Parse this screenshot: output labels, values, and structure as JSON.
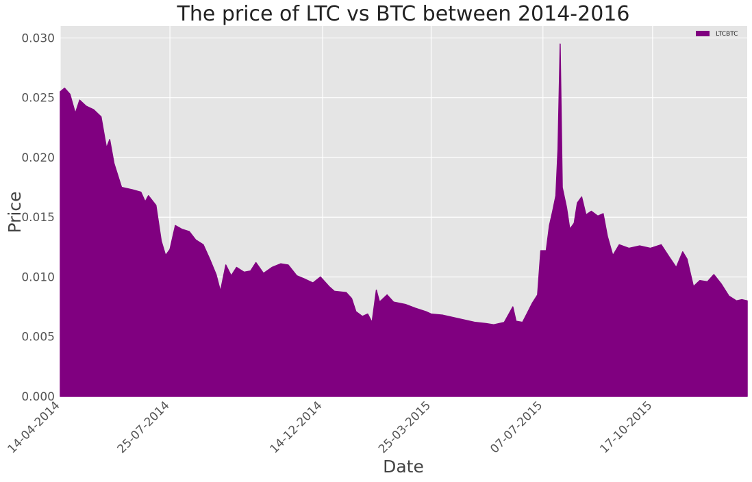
{
  "chart_data": {
    "type": "area",
    "title": "The price of LTC vs BTC between 2014-2016",
    "xlabel": "Date",
    "ylabel": "Price",
    "x_range": [
      "2014-04-14",
      "2016-01-13"
    ],
    "xticks": [
      {
        "date": "2014-04-14",
        "label": "14-04-2014"
      },
      {
        "date": "2014-07-25",
        "label": "25-07-2014"
      },
      {
        "date": "2014-12-14",
        "label": "14-12-2014"
      },
      {
        "date": "2015-03-25",
        "label": "25-03-2015"
      },
      {
        "date": "2015-07-07",
        "label": "07-07-2015"
      },
      {
        "date": "2015-10-17",
        "label": "17-10-2015"
      }
    ],
    "ylim": [
      0,
      0.031
    ],
    "yticks": [
      {
        "value": 0.0,
        "label": "0.000"
      },
      {
        "value": 0.005,
        "label": "0.005"
      },
      {
        "value": 0.01,
        "label": "0.010"
      },
      {
        "value": 0.015,
        "label": "0.015"
      },
      {
        "value": 0.02,
        "label": "0.020"
      },
      {
        "value": 0.025,
        "label": "0.025"
      },
      {
        "value": 0.03,
        "label": "0.030"
      }
    ],
    "grid": true,
    "legend_position": "top-right",
    "series": [
      {
        "name": "LTCBTC",
        "color": "#800080",
        "points": [
          [
            "2014-04-14",
            0.0255
          ],
          [
            "2014-04-18",
            0.0258
          ],
          [
            "2014-04-23",
            0.0253
          ],
          [
            "2014-04-28",
            0.0237
          ],
          [
            "2014-05-02",
            0.0248
          ],
          [
            "2014-05-08",
            0.0243
          ],
          [
            "2014-05-15",
            0.024
          ],
          [
            "2014-05-22",
            0.0234
          ],
          [
            "2014-05-27",
            0.0208
          ],
          [
            "2014-05-30",
            0.0215
          ],
          [
            "2014-06-03",
            0.0195
          ],
          [
            "2014-06-10",
            0.0175
          ],
          [
            "2014-06-20",
            0.0173
          ],
          [
            "2014-06-28",
            0.0171
          ],
          [
            "2014-07-02",
            0.0163
          ],
          [
            "2014-07-05",
            0.0168
          ],
          [
            "2014-07-12",
            0.016
          ],
          [
            "2014-07-17",
            0.013
          ],
          [
            "2014-07-21",
            0.0118
          ],
          [
            "2014-07-25",
            0.0123
          ],
          [
            "2014-07-30",
            0.0143
          ],
          [
            "2014-08-05",
            0.014
          ],
          [
            "2014-08-12",
            0.0138
          ],
          [
            "2014-08-18",
            0.0131
          ],
          [
            "2014-08-25",
            0.0127
          ],
          [
            "2014-08-31",
            0.0115
          ],
          [
            "2014-09-06",
            0.0102
          ],
          [
            "2014-09-10",
            0.0088
          ],
          [
            "2014-09-15",
            0.011
          ],
          [
            "2014-09-20",
            0.0101
          ],
          [
            "2014-09-25",
            0.0108
          ],
          [
            "2014-10-02",
            0.0104
          ],
          [
            "2014-10-08",
            0.0105
          ],
          [
            "2014-10-13",
            0.0112
          ],
          [
            "2014-10-20",
            0.0103
          ],
          [
            "2014-10-28",
            0.0108
          ],
          [
            "2014-11-05",
            0.0111
          ],
          [
            "2014-11-12",
            0.011
          ],
          [
            "2014-11-20",
            0.0101
          ],
          [
            "2014-11-28",
            0.0098
          ],
          [
            "2014-12-05",
            0.0095
          ],
          [
            "2014-12-12",
            0.01
          ],
          [
            "2014-12-20",
            0.0092
          ],
          [
            "2014-12-25",
            0.0088
          ],
          [
            "2015-01-05",
            0.0087
          ],
          [
            "2015-01-10",
            0.0082
          ],
          [
            "2015-01-14",
            0.0071
          ],
          [
            "2015-01-20",
            0.0067
          ],
          [
            "2015-01-25",
            0.0069
          ],
          [
            "2015-01-29",
            0.0062
          ],
          [
            "2015-02-02",
            0.0089
          ],
          [
            "2015-02-05",
            0.0079
          ],
          [
            "2015-02-12",
            0.0085
          ],
          [
            "2015-02-18",
            0.0079
          ],
          [
            "2015-03-01",
            0.0077
          ],
          [
            "2015-03-10",
            0.0074
          ],
          [
            "2015-03-20",
            0.0071
          ],
          [
            "2015-03-25",
            0.0069
          ],
          [
            "2015-04-05",
            0.0068
          ],
          [
            "2015-04-15",
            0.0066
          ],
          [
            "2015-04-25",
            0.0064
          ],
          [
            "2015-05-05",
            0.0062
          ],
          [
            "2015-05-15",
            0.0061
          ],
          [
            "2015-05-22",
            0.006
          ],
          [
            "2015-06-01",
            0.0062
          ],
          [
            "2015-06-06",
            0.007
          ],
          [
            "2015-06-09",
            0.0075
          ],
          [
            "2015-06-12",
            0.0063
          ],
          [
            "2015-06-18",
            0.0062
          ],
          [
            "2015-06-22",
            0.0069
          ],
          [
            "2015-06-27",
            0.0078
          ],
          [
            "2015-07-02",
            0.0085
          ],
          [
            "2015-07-05",
            0.0122
          ],
          [
            "2015-07-10",
            0.0122
          ],
          [
            "2015-07-13",
            0.0143
          ],
          [
            "2015-07-16",
            0.0155
          ],
          [
            "2015-07-19",
            0.0168
          ],
          [
            "2015-07-21",
            0.0207
          ],
          [
            "2015-07-23",
            0.0295
          ],
          [
            "2015-07-25",
            0.0175
          ],
          [
            "2015-07-29",
            0.0158
          ],
          [
            "2015-08-01",
            0.014
          ],
          [
            "2015-08-05",
            0.0145
          ],
          [
            "2015-08-08",
            0.0162
          ],
          [
            "2015-08-12",
            0.0167
          ],
          [
            "2015-08-16",
            0.0152
          ],
          [
            "2015-08-21",
            0.0155
          ],
          [
            "2015-08-27",
            0.0151
          ],
          [
            "2015-09-01",
            0.0153
          ],
          [
            "2015-09-05",
            0.0134
          ],
          [
            "2015-09-10",
            0.0118
          ],
          [
            "2015-09-16",
            0.0127
          ],
          [
            "2015-09-25",
            0.0124
          ],
          [
            "2015-10-05",
            0.0126
          ],
          [
            "2015-10-15",
            0.0124
          ],
          [
            "2015-10-25",
            0.0127
          ],
          [
            "2015-11-02",
            0.0116
          ],
          [
            "2015-11-08",
            0.0108
          ],
          [
            "2015-11-14",
            0.0121
          ],
          [
            "2015-11-18",
            0.0115
          ],
          [
            "2015-11-24",
            0.0092
          ],
          [
            "2015-11-30",
            0.0097
          ],
          [
            "2015-12-07",
            0.0096
          ],
          [
            "2015-12-13",
            0.0102
          ],
          [
            "2015-12-20",
            0.0094
          ],
          [
            "2015-12-27",
            0.0084
          ],
          [
            "2016-01-03",
            0.008
          ],
          [
            "2016-01-08",
            0.0081
          ],
          [
            "2016-01-13",
            0.008
          ]
        ]
      }
    ]
  }
}
